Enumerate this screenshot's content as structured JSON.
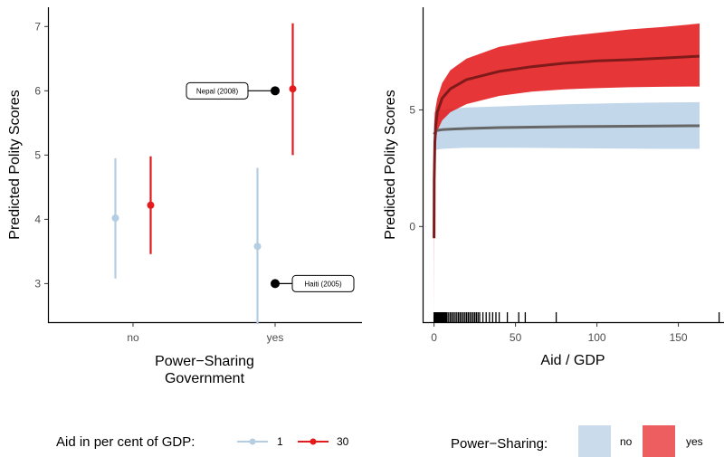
{
  "chart_data": [
    {
      "type": "pointrange",
      "xlabel_line1": "Power−Sharing",
      "xlabel_line2": "Government",
      "ylabel": "Predicted Polity Scores",
      "ylim": [
        2.4,
        7.3
      ],
      "y_ticks": [
        3,
        4,
        5,
        6,
        7
      ],
      "categories": [
        "no",
        "yes"
      ],
      "series": [
        {
          "name": "1",
          "color": "#b3cde3",
          "points": [
            {
              "category": "no",
              "estimate": 4.02,
              "low": 3.08,
              "high": 4.95
            },
            {
              "category": "yes",
              "estimate": 3.58,
              "low": 2.37,
              "high": 4.8
            }
          ]
        },
        {
          "name": "30",
          "color": "#e41a1c",
          "points": [
            {
              "category": "no",
              "estimate": 4.22,
              "low": 3.46,
              "high": 4.98
            },
            {
              "category": "yes",
              "estimate": 6.03,
              "low": 5.0,
              "high": 7.05
            }
          ]
        }
      ],
      "annotations": [
        {
          "label": "Nepal (2008)",
          "category": "yes",
          "y": 6.0
        },
        {
          "label": "Haiti (2005)",
          "category": "yes",
          "y": 3.0
        }
      ],
      "legend": {
        "title": "Aid in per cent of GDP:",
        "position": "bottom"
      }
    },
    {
      "type": "area",
      "xlabel": "Aid / GDP",
      "ylabel": "Predicted Polity Scores",
      "xlim": [
        -7,
        178
      ],
      "ylim": [
        -4.1,
        9.4
      ],
      "x_ticks": [
        0,
        50,
        100,
        150
      ],
      "y_ticks": [
        0,
        5
      ],
      "series": [
        {
          "name": "no",
          "color": "#b3cde3",
          "line_color": "#666666",
          "x": [
            0,
            1,
            2,
            5,
            10,
            20,
            40,
            60,
            80,
            100,
            120,
            140,
            163
          ],
          "y": [
            3.95,
            4.08,
            4.12,
            4.15,
            4.17,
            4.2,
            4.24,
            4.26,
            4.28,
            4.29,
            4.3,
            4.31,
            4.32
          ],
          "low": [
            3.0,
            3.25,
            3.3,
            3.33,
            3.35,
            3.38,
            3.38,
            3.37,
            3.36,
            3.35,
            3.34,
            3.33,
            3.33
          ],
          "high": [
            4.9,
            4.95,
            5.0,
            5.0,
            5.05,
            5.1,
            5.15,
            5.2,
            5.24,
            5.27,
            5.3,
            5.32,
            5.33
          ]
        },
        {
          "name": "yes",
          "color": "#e41a1c",
          "line_color": "#7f1a1a",
          "x": [
            0.02,
            0.1,
            0.5,
            1,
            2,
            5,
            10,
            20,
            40,
            60,
            80,
            100,
            120,
            140,
            163
          ],
          "y": [
            -0.5,
            2.0,
            3.6,
            4.3,
            4.9,
            5.5,
            5.9,
            6.3,
            6.65,
            6.85,
            7.0,
            7.1,
            7.15,
            7.22,
            7.3
          ],
          "low": [
            -3.8,
            -0.3,
            2.6,
            3.6,
            4.1,
            4.55,
            4.9,
            5.25,
            5.6,
            5.78,
            5.88,
            5.93,
            5.97,
            5.99,
            6.0
          ],
          "high": [
            3.6,
            4.4,
            4.8,
            5.1,
            5.5,
            6.15,
            6.7,
            7.2,
            7.7,
            7.95,
            8.15,
            8.3,
            8.45,
            8.55,
            8.7
          ]
        }
      ],
      "rug": [
        0,
        0.5,
        1,
        1.5,
        2,
        2.5,
        3,
        3.5,
        4,
        4.5,
        5,
        5.5,
        6,
        6.5,
        7,
        7.5,
        8,
        9,
        10,
        11,
        12,
        13,
        14,
        15,
        16,
        17,
        18,
        19,
        20,
        21,
        22,
        23,
        24,
        25,
        26,
        27,
        28,
        30,
        32,
        34,
        36,
        38,
        40,
        45,
        52,
        56,
        75,
        175
      ],
      "legend": {
        "title": "Power−Sharing:",
        "position": "bottom"
      }
    }
  ]
}
